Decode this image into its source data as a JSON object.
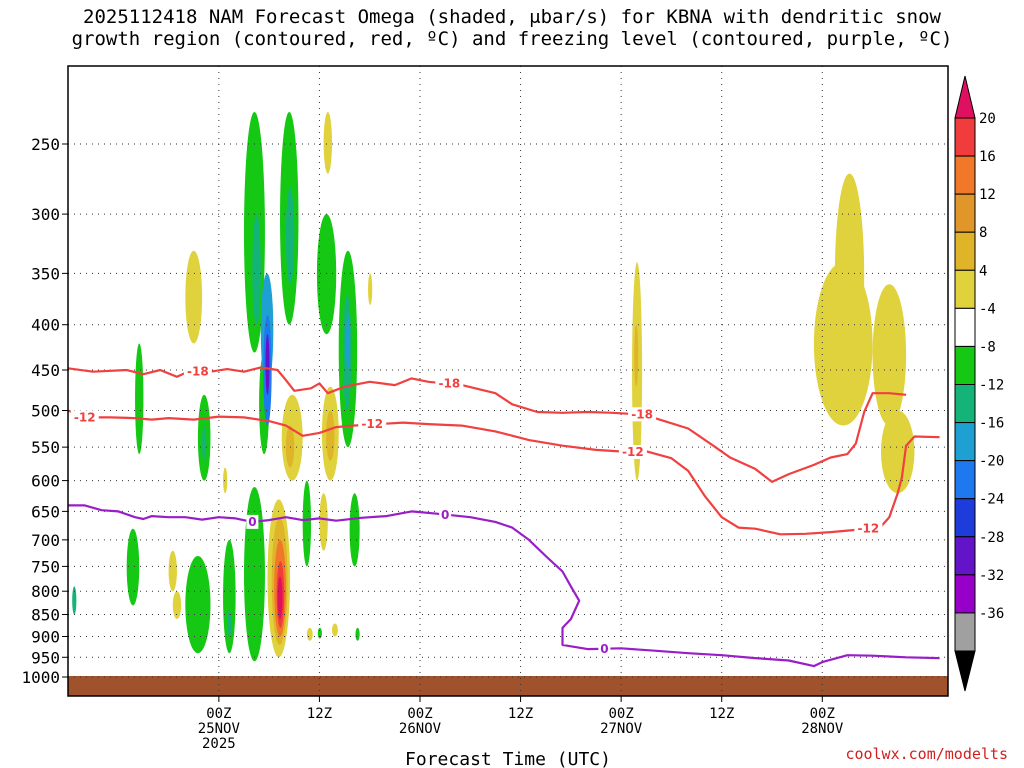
{
  "title": {
    "line1": "2025112418 NAM Forecast Omega (shaded, μbar/s) for KBNA with dendritic snow",
    "line2": "growth region (contoured, red, ºC) and freezing level (contoured, purple, ºC)"
  },
  "credit": "coolwx.com/modelts",
  "chart_data": {
    "type": "heatmap",
    "xlabel": "Forecast Time (UTC)",
    "ylabel": "",
    "x_domain_hours": [
      -12,
      93
    ],
    "y_axis": {
      "scale": "log-pressure",
      "reversed": true,
      "lim": [
        1050,
        200
      ],
      "unit": "mb"
    },
    "y_ticks": [
      250,
      300,
      350,
      400,
      450,
      500,
      550,
      600,
      650,
      700,
      750,
      800,
      850,
      900,
      950,
      1000
    ],
    "x_ticks": [
      {
        "hour": 6,
        "line1": "00Z",
        "line2": "25NOV",
        "line3": "2025"
      },
      {
        "hour": 18,
        "line1": "12Z",
        "line2": "",
        "line3": ""
      },
      {
        "hour": 30,
        "line1": "00Z",
        "line2": "26NOV",
        "line3": ""
      },
      {
        "hour": 42,
        "line1": "12Z",
        "line2": "",
        "line3": ""
      },
      {
        "hour": 54,
        "line1": "00Z",
        "line2": "27NOV",
        "line3": ""
      },
      {
        "hour": 66,
        "line1": "12Z",
        "line2": "",
        "line3": ""
      },
      {
        "hour": 78,
        "line1": "00Z",
        "line2": "28NOV",
        "line3": ""
      }
    ],
    "grid": true,
    "ground_color": "#a0522d",
    "colorbar": {
      "labels": [
        "20",
        "16",
        "12",
        "8",
        "4",
        "-4",
        "-8",
        "-12",
        "-16",
        "-20",
        "-24",
        "-28",
        "-32",
        "-36"
      ],
      "colors": [
        "#e01060",
        "#f03c3c",
        "#f07828",
        "#e09628",
        "#e0b428",
        "#e0d23c",
        "#ffffff",
        "#14c814",
        "#14b478",
        "#1ea0d2",
        "#1e78f0",
        "#1e3cdc",
        "#6414c8",
        "#9600c8",
        "#a0a0a0",
        "#000000"
      ]
    },
    "omega_patches": [
      {
        "t0": -11.5,
        "t1": -11,
        "p0": 790,
        "p1": 850,
        "v": -12
      },
      {
        "t0": -5,
        "t1": -3.5,
        "p0": 680,
        "p1": 830,
        "v": -8
      },
      {
        "t0": -4,
        "t1": -3,
        "p0": 420,
        "p1": 560,
        "v": -8
      },
      {
        "t0": 0,
        "t1": 1,
        "p0": 720,
        "p1": 800,
        "v": 4
      },
      {
        "t0": 0.5,
        "t1": 1.5,
        "p0": 800,
        "p1": 860,
        "v": 4
      },
      {
        "t0": 2,
        "t1": 4,
        "p0": 330,
        "p1": 420,
        "v": 4
      },
      {
        "t0": 2,
        "t1": 5,
        "p0": 730,
        "p1": 940,
        "v": -8
      },
      {
        "t0": 3.5,
        "t1": 5,
        "p0": 480,
        "p1": 600,
        "v": -8
      },
      {
        "t0": 4,
        "t1": 4.5,
        "p0": 520,
        "p1": 570,
        "v": -12
      },
      {
        "t0": 6.5,
        "t1": 7,
        "p0": 580,
        "p1": 620,
        "v": 4
      },
      {
        "t0": 6.5,
        "t1": 8,
        "p0": 700,
        "p1": 940,
        "v": -8
      },
      {
        "t0": 7,
        "t1": 7.5,
        "p0": 840,
        "p1": 900,
        "v": -12
      },
      {
        "t0": 9,
        "t1": 11.5,
        "p0": 230,
        "p1": 430,
        "v": -8
      },
      {
        "t0": 9,
        "t1": 11.5,
        "p0": 610,
        "p1": 960,
        "v": -8
      },
      {
        "t0": 10,
        "t1": 11,
        "p0": 300,
        "p1": 400,
        "v": -12
      },
      {
        "t0": 10.8,
        "t1": 12,
        "p0": 430,
        "p1": 560,
        "v": -8
      },
      {
        "t0": 11,
        "t1": 12.5,
        "p0": 350,
        "p1": 470,
        "v": -16
      },
      {
        "t0": 11.3,
        "t1": 12.3,
        "p0": 390,
        "p1": 520,
        "v": -20
      },
      {
        "t0": 11.6,
        "t1": 12,
        "p0": 410,
        "p1": 480,
        "v": -28
      },
      {
        "t0": 11.8,
        "t1": 14.5,
        "p0": 630,
        "p1": 950,
        "v": 4
      },
      {
        "t0": 12.3,
        "t1": 14.2,
        "p0": 660,
        "p1": 920,
        "v": 8
      },
      {
        "t0": 12.6,
        "t1": 14,
        "p0": 700,
        "p1": 900,
        "v": 12
      },
      {
        "t0": 12.9,
        "t1": 13.8,
        "p0": 740,
        "p1": 880,
        "v": 16
      },
      {
        "t0": 13,
        "t1": 13.6,
        "p0": 770,
        "p1": 860,
        "v": 20
      },
      {
        "t0": 13.3,
        "t1": 15.5,
        "p0": 230,
        "p1": 400,
        "v": -8
      },
      {
        "t0": 14,
        "t1": 15,
        "p0": 280,
        "p1": 360,
        "v": -12
      },
      {
        "t0": 13.5,
        "t1": 16,
        "p0": 480,
        "p1": 600,
        "v": 4
      },
      {
        "t0": 14,
        "t1": 15,
        "p0": 520,
        "p1": 580,
        "v": 8
      },
      {
        "t0": 16,
        "t1": 17,
        "p0": 600,
        "p1": 750,
        "v": -8
      },
      {
        "t0": 16.5,
        "t1": 17.2,
        "p0": 880,
        "p1": 910,
        "v": 4
      },
      {
        "t0": 17.8,
        "t1": 18.3,
        "p0": 880,
        "p1": 905,
        "v": -8
      },
      {
        "t0": 18.5,
        "t1": 19.5,
        "p0": 230,
        "p1": 270,
        "v": 4
      },
      {
        "t0": 17.7,
        "t1": 20,
        "p0": 300,
        "p1": 410,
        "v": -8
      },
      {
        "t0": 18.3,
        "t1": 20.3,
        "p0": 470,
        "p1": 600,
        "v": 4
      },
      {
        "t0": 18.8,
        "t1": 19.8,
        "p0": 500,
        "p1": 570,
        "v": 8
      },
      {
        "t0": 18,
        "t1": 19,
        "p0": 620,
        "p1": 720,
        "v": 4
      },
      {
        "t0": 19.5,
        "t1": 20.2,
        "p0": 870,
        "p1": 900,
        "v": 4
      },
      {
        "t0": 20.3,
        "t1": 22.5,
        "p0": 330,
        "p1": 550,
        "v": -8
      },
      {
        "t0": 20.8,
        "t1": 21.8,
        "p0": 370,
        "p1": 500,
        "v": -12
      },
      {
        "t0": 21.2,
        "t1": 21.6,
        "p0": 390,
        "p1": 450,
        "v": -16
      },
      {
        "t0": 21.6,
        "t1": 22.8,
        "p0": 620,
        "p1": 750,
        "v": -8
      },
      {
        "t0": 22.3,
        "t1": 22.8,
        "p0": 880,
        "p1": 910,
        "v": -8
      },
      {
        "t0": 23.8,
        "t1": 24.3,
        "p0": 350,
        "p1": 380,
        "v": 4
      },
      {
        "t0": 55.3,
        "t1": 56.5,
        "p0": 340,
        "p1": 600,
        "v": 4
      },
      {
        "t0": 55.6,
        "t1": 56,
        "p0": 400,
        "p1": 470,
        "v": 8
      },
      {
        "t0": 79.5,
        "t1": 83,
        "p0": 270,
        "p1": 460,
        "v": 4
      },
      {
        "t0": 77,
        "t1": 84,
        "p0": 340,
        "p1": 520,
        "v": 4
      },
      {
        "t0": 84,
        "t1": 88,
        "p0": 360,
        "p1": 520,
        "v": 4
      },
      {
        "t0": 85,
        "t1": 89,
        "p0": 500,
        "p1": 620,
        "v": 4
      }
    ],
    "series": [
      {
        "color": "#f04040",
        "points": [
          [
            -12,
            448
          ],
          [
            -9,
            452
          ],
          [
            -5,
            450
          ],
          [
            -3,
            455
          ],
          [
            -1,
            450
          ],
          [
            1,
            458
          ],
          [
            3,
            449
          ],
          [
            5,
            452
          ],
          [
            7,
            449
          ],
          [
            9,
            452
          ],
          [
            11,
            447
          ],
          [
            13,
            450
          ],
          [
            14,
            462
          ],
          [
            15,
            475
          ],
          [
            17,
            472
          ],
          [
            18,
            466
          ],
          [
            19,
            478
          ],
          [
            21,
            470
          ],
          [
            24,
            464
          ],
          [
            27,
            468
          ],
          [
            29,
            460
          ],
          [
            31,
            464
          ],
          [
            35,
            468
          ],
          [
            39,
            478
          ],
          [
            41,
            492
          ],
          [
            44,
            502
          ],
          [
            47,
            503
          ],
          [
            50,
            502
          ],
          [
            53,
            503
          ],
          [
            56,
            505
          ],
          [
            58,
            510
          ],
          [
            62,
            524
          ],
          [
            65,
            548
          ],
          [
            67,
            565
          ],
          [
            70,
            582
          ],
          [
            72,
            602
          ],
          [
            74,
            590
          ],
          [
            77,
            576
          ],
          [
            79,
            565
          ],
          [
            81,
            560
          ],
          [
            82,
            545
          ],
          [
            83,
            502
          ],
          [
            84,
            478
          ],
          [
            86,
            478
          ],
          [
            88,
            480
          ]
        ]
      },
      {
        "color": "#f04040",
        "points": [
          [
            -12,
            500
          ],
          [
            -10,
            509
          ],
          [
            -7,
            509
          ],
          [
            -4,
            510
          ],
          [
            -2,
            512
          ],
          [
            0,
            510
          ],
          [
            3,
            512
          ],
          [
            6,
            508
          ],
          [
            9,
            509
          ],
          [
            12,
            514
          ],
          [
            14,
            520
          ],
          [
            16,
            534
          ],
          [
            18,
            530
          ],
          [
            20,
            522
          ],
          [
            22,
            520
          ],
          [
            25,
            518
          ],
          [
            28,
            516
          ],
          [
            31,
            518
          ],
          [
            35,
            520
          ],
          [
            39,
            528
          ],
          [
            43,
            540
          ],
          [
            47,
            548
          ],
          [
            51,
            554
          ],
          [
            55,
            557
          ],
          [
            57,
            556
          ],
          [
            60,
            566
          ],
          [
            62,
            585
          ],
          [
            64,
            625
          ],
          [
            66,
            660
          ],
          [
            68,
            678
          ],
          [
            70,
            680
          ],
          [
            73,
            690
          ],
          [
            76,
            689
          ],
          [
            79,
            686
          ],
          [
            82,
            682
          ],
          [
            85,
            676
          ],
          [
            86,
            660
          ],
          [
            87,
            620
          ],
          [
            87.5,
            595
          ],
          [
            88,
            548
          ],
          [
            89,
            535
          ],
          [
            92,
            536
          ]
        ]
      },
      {
        "color": "#9a1ec8",
        "points": [
          [
            -12,
            640
          ],
          [
            -10,
            640
          ],
          [
            -8,
            648
          ],
          [
            -6,
            650
          ],
          [
            -4,
            660
          ],
          [
            -3,
            663
          ],
          [
            -2,
            658
          ],
          [
            0,
            660
          ],
          [
            2,
            660
          ],
          [
            4,
            664
          ],
          [
            6,
            660
          ],
          [
            8,
            662
          ],
          [
            10,
            668
          ],
          [
            12,
            665
          ],
          [
            14,
            660
          ],
          [
            16,
            665
          ],
          [
            18,
            662
          ],
          [
            20,
            666
          ],
          [
            23,
            661
          ],
          [
            26,
            658
          ],
          [
            29,
            650
          ],
          [
            32,
            654
          ],
          [
            36,
            660
          ],
          [
            39,
            668
          ],
          [
            41,
            678
          ],
          [
            43,
            700
          ],
          [
            45,
            730
          ],
          [
            47,
            760
          ],
          [
            48,
            790
          ],
          [
            49,
            820
          ],
          [
            48,
            860
          ],
          [
            47,
            880
          ],
          [
            47,
            920
          ],
          [
            50,
            930
          ],
          [
            54,
            928
          ],
          [
            58,
            934
          ],
          [
            62,
            940
          ],
          [
            66,
            945
          ],
          [
            70,
            952
          ],
          [
            74,
            958
          ],
          [
            77,
            972
          ],
          [
            78,
            962
          ],
          [
            81,
            945
          ],
          [
            84,
            946
          ],
          [
            88,
            950
          ],
          [
            92,
            952
          ]
        ]
      }
    ],
    "contour_labels": [
      {
        "text": "-18",
        "t": 3.5,
        "p": 452,
        "color": "#f04040"
      },
      {
        "text": "-18",
        "t": 33.5,
        "p": 466,
        "color": "#f04040"
      },
      {
        "text": "-18",
        "t": 56.5,
        "p": 505,
        "color": "#f04040"
      },
      {
        "text": "-12",
        "t": -10,
        "p": 509,
        "color": "#f04040"
      },
      {
        "text": "-12",
        "t": 24.3,
        "p": 518,
        "color": "#f04040"
      },
      {
        "text": "-12",
        "t": 55.4,
        "p": 557,
        "color": "#f04040"
      },
      {
        "text": "-12",
        "t": 83.5,
        "p": 680,
        "color": "#f04040"
      },
      {
        "text": "0",
        "t": 10,
        "p": 668,
        "color": "#9a1ec8"
      },
      {
        "text": "0",
        "t": 33,
        "p": 656,
        "color": "#9a1ec8"
      },
      {
        "text": "0",
        "t": 52,
        "p": 930,
        "color": "#9a1ec8"
      }
    ]
  }
}
